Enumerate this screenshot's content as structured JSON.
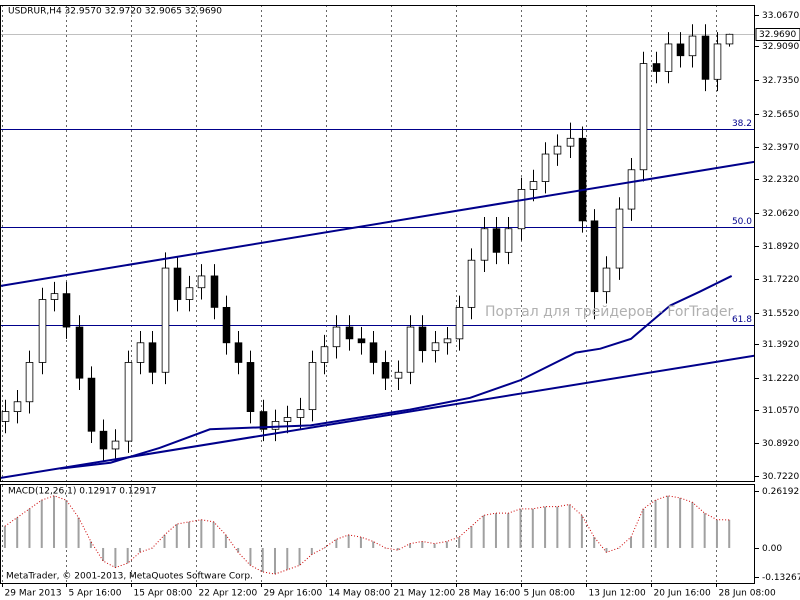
{
  "chart_data": [
    {
      "type": "candlestick",
      "title": "USDRUR,H4  32.9570 32.9720 32.9065 32.9690",
      "watermark": "Портал для трейдеров - ForTrader",
      "open": [
        31.0,
        31.05,
        31.1,
        31.3,
        31.62,
        31.65,
        31.48,
        31.22,
        30.95,
        30.86,
        30.9,
        31.3,
        31.4,
        31.25,
        31.78,
        31.62,
        31.68,
        31.74,
        31.58,
        31.4,
        31.3,
        31.05,
        30.96,
        31.0,
        31.02,
        31.06,
        31.3,
        31.38,
        31.48,
        31.42,
        31.4,
        31.3,
        31.22,
        31.25,
        31.48,
        31.36,
        31.4,
        31.42,
        31.58,
        31.82,
        31.98,
        31.86,
        31.98,
        32.18,
        32.22,
        32.36,
        32.4,
        32.44,
        32.02,
        31.66,
        31.78,
        32.08,
        32.28,
        32.82,
        32.78,
        32.92,
        32.86,
        32.96,
        32.74,
        32.92
      ],
      "high": [
        31.11,
        31.16,
        31.36,
        31.68,
        31.71,
        31.71,
        31.54,
        31.28,
        31.01,
        30.96,
        31.36,
        31.46,
        31.46,
        31.86,
        31.84,
        31.74,
        31.8,
        31.8,
        31.64,
        31.46,
        31.36,
        31.11,
        31.06,
        31.08,
        31.12,
        31.36,
        31.44,
        31.54,
        31.54,
        31.48,
        31.46,
        31.36,
        31.31,
        31.54,
        31.54,
        31.46,
        31.48,
        31.64,
        31.88,
        32.04,
        32.04,
        32.04,
        32.24,
        32.28,
        32.42,
        32.46,
        32.52,
        32.5,
        32.08,
        31.84,
        32.14,
        32.34,
        32.88,
        32.88,
        32.98,
        32.98,
        33.02,
        33.02,
        32.98,
        32.972
      ],
      "low": [
        30.94,
        30.99,
        31.04,
        31.24,
        31.56,
        31.42,
        31.16,
        30.89,
        30.8,
        30.8,
        30.84,
        31.24,
        31.19,
        31.19,
        31.56,
        31.56,
        31.62,
        31.52,
        31.34,
        31.24,
        30.99,
        30.9,
        30.9,
        30.94,
        30.96,
        31.0,
        31.24,
        31.32,
        31.36,
        31.34,
        31.24,
        31.16,
        31.16,
        31.19,
        31.3,
        31.3,
        31.34,
        31.36,
        31.52,
        31.76,
        31.8,
        31.8,
        31.92,
        32.12,
        32.16,
        32.3,
        32.34,
        31.96,
        31.52,
        31.6,
        31.72,
        32.02,
        32.22,
        32.72,
        32.72,
        32.8,
        32.8,
        32.68,
        32.68,
        32.9065
      ],
      "close": [
        31.05,
        31.1,
        31.3,
        31.62,
        31.65,
        31.48,
        31.22,
        30.95,
        30.86,
        30.9,
        31.3,
        31.4,
        31.25,
        31.78,
        31.62,
        31.68,
        31.74,
        31.58,
        31.4,
        31.3,
        31.05,
        30.96,
        31.0,
        31.02,
        31.06,
        31.3,
        31.38,
        31.48,
        31.42,
        31.4,
        31.3,
        31.22,
        31.25,
        31.48,
        31.36,
        31.4,
        31.42,
        31.58,
        31.82,
        31.98,
        31.86,
        31.98,
        32.18,
        32.22,
        32.36,
        32.4,
        32.44,
        32.02,
        31.66,
        31.78,
        32.08,
        32.28,
        32.82,
        32.78,
        32.92,
        32.86,
        32.96,
        32.74,
        32.92,
        32.969
      ],
      "bull_color": "#ffffff",
      "bear_color": "#000000",
      "outline_color": "#000000",
      "xlim": [
        -0.4,
        61.1
      ],
      "xticks": [
        {
          "value": -0.24,
          "label": "29 Mar 2013"
        },
        {
          "value": 4.97,
          "label": "5 Apr 16:00"
        },
        {
          "value": 10.27,
          "label": "15 Apr 08:00"
        },
        {
          "value": 15.57,
          "label": "22 Apr 12:00"
        },
        {
          "value": 20.86,
          "label": "29 Apr 16:00"
        },
        {
          "value": 26.16,
          "label": "14 May 08:00"
        },
        {
          "value": 31.46,
          "label": "21 May 12:00"
        },
        {
          "value": 36.76,
          "label": "28 May 16:00"
        },
        {
          "value": 42.05,
          "label": "5 Jun 08:00"
        },
        {
          "value": 47.35,
          "label": "13 Jun 12:00"
        },
        {
          "value": 52.65,
          "label": "20 Jun 16:00"
        },
        {
          "value": 57.95,
          "label": "28 Jun 08:00"
        }
      ],
      "ylim": [
        30.697,
        33.118
      ],
      "yticks": [
        {
          "value": 33.067,
          "label": "33.0670"
        },
        {
          "value": 32.909,
          "label": "32.9090"
        },
        {
          "value": 32.735,
          "label": "32.7350"
        },
        {
          "value": 32.565,
          "label": "32.5650"
        },
        {
          "value": 32.397,
          "label": "32.3970"
        },
        {
          "value": 32.232,
          "label": "32.2320"
        },
        {
          "value": 32.062,
          "label": "32.0620"
        },
        {
          "value": 31.892,
          "label": "31.8920"
        },
        {
          "value": 31.722,
          "label": "31.7220"
        },
        {
          "value": 31.552,
          "label": "31.5520"
        },
        {
          "value": 31.392,
          "label": "31.3920"
        },
        {
          "value": 31.222,
          "label": "31.2220"
        },
        {
          "value": 31.057,
          "label": "31.0570"
        },
        {
          "value": 30.892,
          "label": "30.8920"
        },
        {
          "value": 30.722,
          "label": "30.7220"
        }
      ],
      "last_price": {
        "value": 32.969,
        "label": "32.9690"
      },
      "levels": [
        {
          "name": "38.2",
          "value": 32.487
        },
        {
          "name": "50.0",
          "value": 31.989
        },
        {
          "name": "61.8",
          "value": 31.491
        }
      ],
      "lines": [
        {
          "x": [
            -0.4,
            61.1
          ],
          "values": [
            31.689,
            32.321
          ],
          "color": "#00008b"
        },
        {
          "x": [
            -0.4,
            61.1
          ],
          "values": [
            30.712,
            31.335
          ],
          "color": "#00008b"
        },
        {
          "x": [
            4.5,
            8.6,
            12.6,
            16.7,
            20.8,
            24.9,
            28.9,
            33.0,
            37.9,
            42.0,
            46.5,
            48.5,
            51.0,
            54.2,
            56.6,
            59.2
          ],
          "values": [
            30.76,
            30.79,
            30.865,
            30.96,
            30.97,
            30.98,
            31.02,
            31.06,
            31.12,
            31.21,
            31.35,
            31.37,
            31.42,
            31.59,
            31.66,
            31.74
          ],
          "color": "#00008b"
        }
      ],
      "grid": true
    },
    {
      "type": "histogram",
      "title": "MACD(12,26,1) 0.12917 0.12917",
      "copyright": "MetaTrader, © 2001-2013, MetaQuotes Software Corp.",
      "values": [
        0.1,
        0.14,
        0.18,
        0.22,
        0.24,
        0.22,
        0.14,
        0.03,
        -0.06,
        -0.09,
        -0.07,
        -0.02,
        0.0,
        0.06,
        0.11,
        0.12,
        0.13,
        0.12,
        0.06,
        -0.02,
        -0.08,
        -0.11,
        -0.12,
        -0.1,
        -0.08,
        -0.03,
        0.0,
        0.04,
        0.06,
        0.05,
        0.03,
        0.0,
        -0.01,
        0.02,
        0.03,
        0.02,
        0.03,
        0.05,
        0.1,
        0.15,
        0.16,
        0.16,
        0.18,
        0.18,
        0.19,
        0.19,
        0.2,
        0.15,
        0.05,
        -0.02,
        0.0,
        0.05,
        0.18,
        0.22,
        0.24,
        0.23,
        0.21,
        0.16,
        0.13,
        0.12917
      ],
      "color": "#a0a0a0",
      "signal_color": "#cc0000",
      "ylim": [
        -0.161,
        0.2895
      ],
      "yticks": [
        0.26192,
        {
          "value": 0,
          "label": "0.00"
        },
        -0.13267
      ]
    }
  ]
}
